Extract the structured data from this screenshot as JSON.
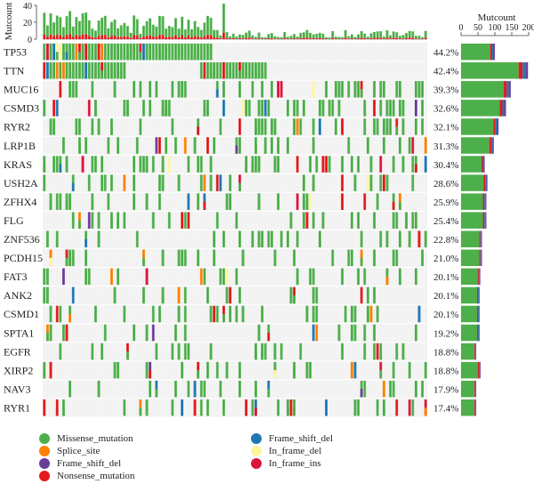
{
  "chart_data": {
    "type": "heatmap",
    "top_ylabel": "Mutcount",
    "top_yticks": [
      0,
      20,
      40
    ],
    "right_xlabel": "Mutcount",
    "right_xticks": [
      0,
      50,
      100,
      150,
      200
    ],
    "genes": [
      {
        "name": "TP53",
        "pct": "44.2%",
        "count": 100
      },
      {
        "name": "TTN",
        "pct": "42.4%",
        "count": 198
      },
      {
        "name": "MUC16",
        "pct": "39.3%",
        "count": 147
      },
      {
        "name": "CSMD3",
        "pct": "32.6%",
        "count": 133
      },
      {
        "name": "RYR2",
        "pct": "32.1%",
        "count": 111
      },
      {
        "name": "LRP1B",
        "pct": "31.3%",
        "count": 97
      },
      {
        "name": "KRAS",
        "pct": "30.4%",
        "count": 70
      },
      {
        "name": "USH2A",
        "pct": "28.6%",
        "count": 78
      },
      {
        "name": "ZFHX4",
        "pct": "25.9%",
        "count": 75
      },
      {
        "name": "FLG",
        "pct": "25.4%",
        "count": 75
      },
      {
        "name": "ZNF536",
        "pct": "22.8%",
        "count": 62
      },
      {
        "name": "PCDH15",
        "pct": "21.0%",
        "count": 62
      },
      {
        "name": "FAT3",
        "pct": "20.1%",
        "count": 57
      },
      {
        "name": "ANK2",
        "pct": "20.1%",
        "count": 55
      },
      {
        "name": "CSMD1",
        "pct": "20.1%",
        "count": 55
      },
      {
        "name": "SPTA1",
        "pct": "19.2%",
        "count": 55
      },
      {
        "name": "EGFR",
        "pct": "18.8%",
        "count": 45
      },
      {
        "name": "XIRP2",
        "pct": "18.8%",
        "count": 58
      },
      {
        "name": "NAV3",
        "pct": "17.9%",
        "count": 45
      },
      {
        "name": "RYR1",
        "pct": "17.4%",
        "count": 45
      }
    ],
    "legend": [
      {
        "label": "Missense_mutation",
        "color": "#4DAF4A"
      },
      {
        "label": "Splice_site",
        "color": "#FF7F00"
      },
      {
        "label": "Frame_shift_del",
        "color": "#6A3D9A"
      },
      {
        "label": "Nonsense_mutation",
        "color": "#E41A1C"
      },
      {
        "label": "Frame_shift_del",
        "color": "#1F78B4"
      },
      {
        "label": "In_frame_del",
        "color": "#FFF59D"
      },
      {
        "label": "In_frame_ins",
        "color": "#DC143C"
      }
    ],
    "missing_color": "#DCDCDC"
  }
}
